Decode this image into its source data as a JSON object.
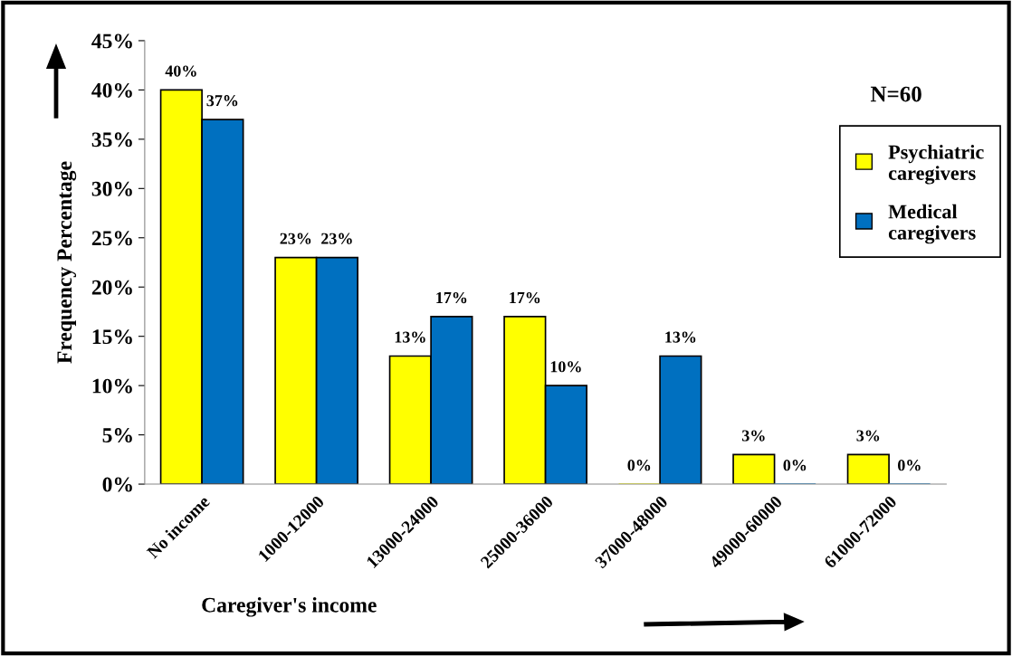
{
  "chart_data": {
    "type": "bar",
    "categories": [
      "No income",
      "1000-12000",
      "13000-24000",
      "25000-36000",
      "37000-48000",
      "49000-60000",
      "61000-72000"
    ],
    "series": [
      {
        "name": "Psychiatric caregivers",
        "color": "#ffff00",
        "values": [
          40,
          23,
          13,
          17,
          0,
          3,
          3
        ],
        "value_labels": [
          "40%",
          "23%",
          "13%",
          "17%",
          "0%",
          "3%",
          "3%"
        ]
      },
      {
        "name": "Medical caregivers",
        "color": "#0070c0",
        "values": [
          37,
          23,
          17,
          10,
          13,
          0,
          0
        ],
        "value_labels": [
          "37%",
          "23%",
          "17%",
          "10%",
          "13%",
          "0%",
          "0%"
        ]
      }
    ],
    "xlabel": "Caregiver's income",
    "ylabel": "Frequency Percentage",
    "ylim": [
      0,
      45
    ],
    "yticks": [
      {
        "value": 0,
        "label": "0%"
      },
      {
        "value": 5,
        "label": "5%"
      },
      {
        "value": 10,
        "label": "10%"
      },
      {
        "value": 15,
        "label": "15%"
      },
      {
        "value": 20,
        "label": "20%"
      },
      {
        "value": 25,
        "label": "25%"
      },
      {
        "value": 30,
        "label": "30%"
      },
      {
        "value": 35,
        "label": "35%"
      },
      {
        "value": 40,
        "label": "40%"
      },
      {
        "value": 45,
        "label": "45%"
      }
    ],
    "annotations": [
      "N=60"
    ],
    "legend": "right",
    "grid": false
  }
}
